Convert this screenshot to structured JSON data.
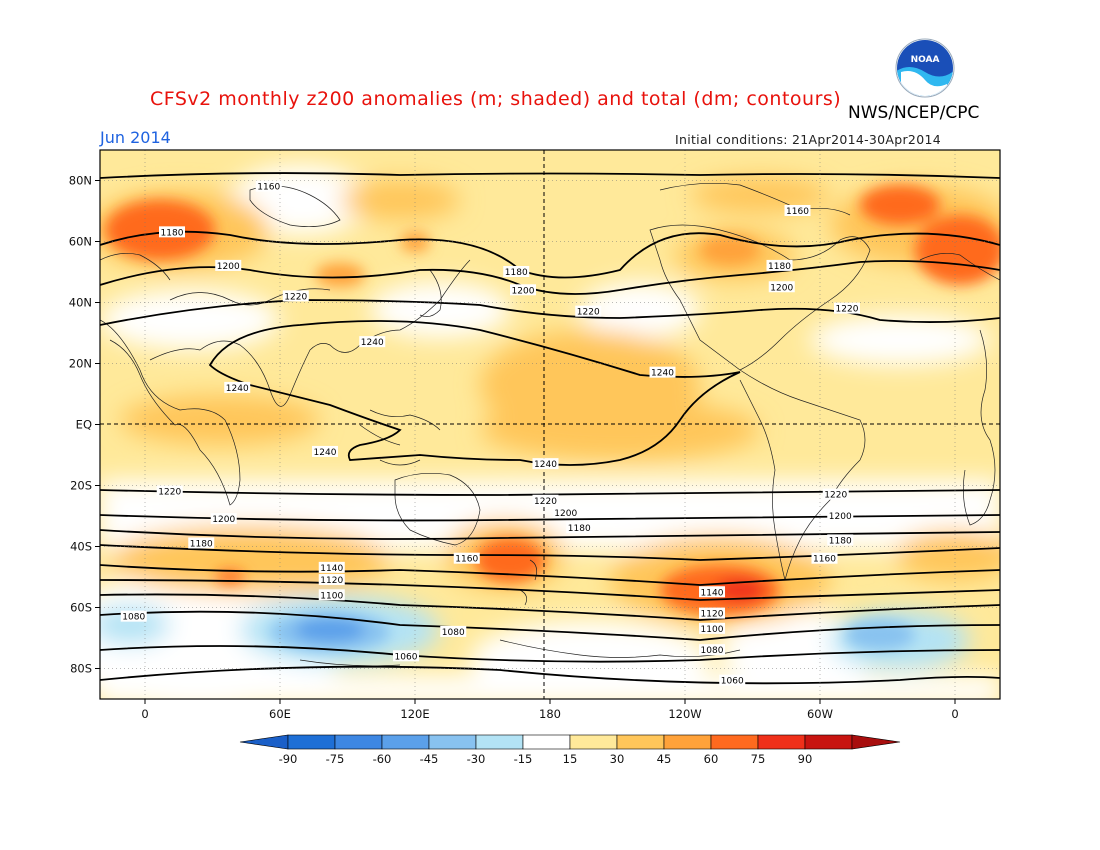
{
  "header": {
    "title": "CFSv2 monthly z200 anomalies (m; shaded) and total (dm; contours)",
    "agency": "NWS/NCEP/CPC",
    "month": "Jun 2014",
    "initial_conditions": "Initial conditions: 21Apr2014-30Apr2014",
    "logo_text": "NOAA"
  },
  "axes": {
    "lat_labels": [
      "80N",
      "60N",
      "40N",
      "20N",
      "EQ",
      "20S",
      "40S",
      "60S",
      "80S"
    ],
    "lat_values": [
      80,
      60,
      40,
      20,
      0,
      -20,
      -40,
      -60,
      -80
    ],
    "lon_labels": [
      "0",
      "60E",
      "120E",
      "180",
      "120W",
      "60W",
      "0"
    ],
    "lon_values": [
      0,
      60,
      120,
      180,
      240,
      300,
      360
    ],
    "lon_range": [
      -20,
      380
    ],
    "lat_range": [
      -90,
      90
    ]
  },
  "colorbar": {
    "labels": [
      "-90",
      "-75",
      "-60",
      "-45",
      "-30",
      "-15",
      "15",
      "30",
      "45",
      "60",
      "75",
      "90"
    ],
    "colors": [
      "#1e6fd6",
      "#3d87e3",
      "#5ba0ea",
      "#88c2f0",
      "#b3e3f5",
      "#ffffff",
      "#ffe99a",
      "#ffc65a",
      "#ffa23a",
      "#ff6a1f",
      "#f0301a",
      "#c81410"
    ],
    "low_arrow_color": "#1a5fc8",
    "high_arrow_color": "#a80e0e"
  },
  "contours": [
    {
      "label": "1160",
      "lat": 78,
      "anchor_lon": 55
    },
    {
      "label": "1160",
      "lat": 70,
      "anchor_lon": 290
    },
    {
      "label": "1180",
      "lat": 63,
      "anchor_lon": 12
    },
    {
      "label": "1180",
      "lat": 50,
      "anchor_lon": 165
    },
    {
      "label": "1180",
      "lat": 52,
      "anchor_lon": 282
    },
    {
      "label": "1200",
      "lat": 52,
      "anchor_lon": 37
    },
    {
      "label": "1200",
      "lat": 44,
      "anchor_lon": 168
    },
    {
      "label": "1200",
      "lat": 45,
      "anchor_lon": 283
    },
    {
      "label": "1220",
      "lat": 42,
      "anchor_lon": 67
    },
    {
      "label": "1220",
      "lat": 37,
      "anchor_lon": 197
    },
    {
      "label": "1220",
      "lat": 38,
      "anchor_lon": 312
    },
    {
      "label": "1240",
      "lat": 27,
      "anchor_lon": 101
    },
    {
      "label": "1240",
      "lat": 12,
      "anchor_lon": 41
    },
    {
      "label": "1240",
      "lat": 17,
      "anchor_lon": 230
    },
    {
      "label": "1240",
      "lat": -9,
      "anchor_lon": 80
    },
    {
      "label": "1240",
      "lat": -13,
      "anchor_lon": 178
    },
    {
      "label": "1220",
      "lat": -22,
      "anchor_lon": 11
    },
    {
      "label": "1220",
      "lat": -25,
      "anchor_lon": 178
    },
    {
      "label": "1220",
      "lat": -23,
      "anchor_lon": 307
    },
    {
      "label": "1200",
      "lat": -31,
      "anchor_lon": 35
    },
    {
      "label": "1200",
      "lat": -29,
      "anchor_lon": 187
    },
    {
      "label": "1200",
      "lat": -30,
      "anchor_lon": 309
    },
    {
      "label": "1180",
      "lat": -39,
      "anchor_lon": 25
    },
    {
      "label": "1180",
      "lat": -34,
      "anchor_lon": 193
    },
    {
      "label": "1180",
      "lat": -38,
      "anchor_lon": 309
    },
    {
      "label": "1160",
      "lat": -44,
      "anchor_lon": 143
    },
    {
      "label": "1160",
      "lat": -44,
      "anchor_lon": 302
    },
    {
      "label": "1140",
      "lat": -47,
      "anchor_lon": 83
    },
    {
      "label": "1140",
      "lat": -55,
      "anchor_lon": 252
    },
    {
      "label": "1120",
      "lat": -51,
      "anchor_lon": 83
    },
    {
      "label": "1120",
      "lat": -62,
      "anchor_lon": 252
    },
    {
      "label": "1100",
      "lat": -56,
      "anchor_lon": 83
    },
    {
      "label": "1100",
      "lat": -67,
      "anchor_lon": 252
    },
    {
      "label": "1080",
      "lat": -63,
      "anchor_lon": -5
    },
    {
      "label": "1080",
      "lat": -68,
      "anchor_lon": 137
    },
    {
      "label": "1080",
      "lat": -74,
      "anchor_lon": 252
    },
    {
      "label": "1060",
      "lat": -76,
      "anchor_lon": 116
    },
    {
      "label": "1060",
      "lat": -84,
      "anchor_lon": 261
    }
  ],
  "colors": {
    "title_red": "#e8120c",
    "month_blue": "#1e62e0",
    "logo_blue": "#1a4fb8",
    "logo_cyan": "#30b8f0"
  }
}
